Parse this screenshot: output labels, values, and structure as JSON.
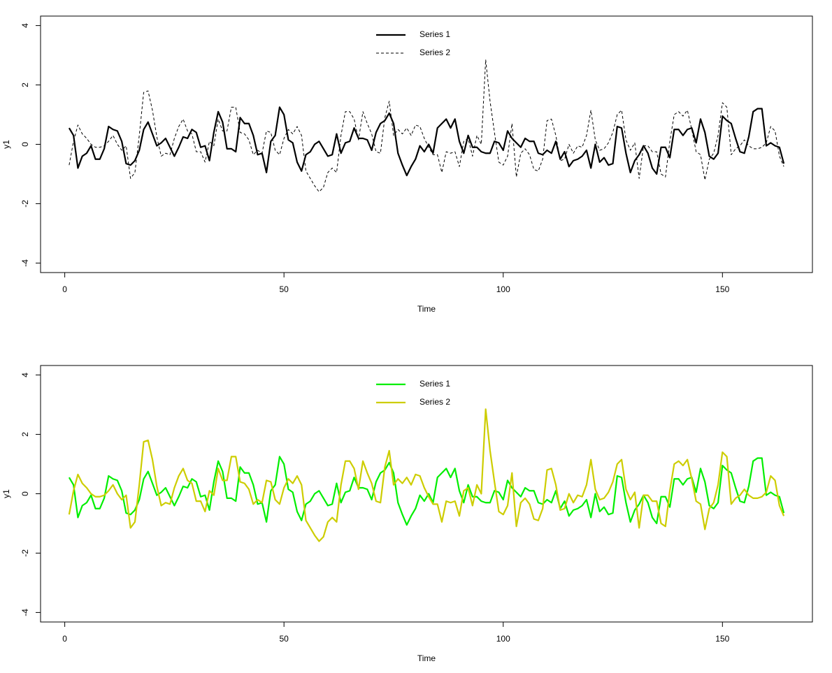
{
  "chart_data": [
    {
      "type": "line",
      "xlabel": "Time",
      "ylabel": "y1",
      "xlim": [
        -5.52,
        170.52
      ],
      "ylim": [
        -4.32,
        4.32
      ],
      "xticks": [
        0,
        50,
        100,
        150
      ],
      "yticks": [
        -4,
        -2,
        0,
        2,
        4
      ],
      "legend": "top",
      "x": [
        1,
        2,
        3,
        4,
        5,
        6,
        7,
        8,
        9,
        10,
        11,
        12,
        13,
        14,
        15,
        16,
        17,
        18,
        19,
        20,
        21,
        22,
        23,
        24,
        25,
        26,
        27,
        28,
        29,
        30,
        31,
        32,
        33,
        34,
        35,
        36,
        37,
        38,
        39,
        40,
        41,
        42,
        43,
        44,
        45,
        46,
        47,
        48,
        49,
        50,
        51,
        52,
        53,
        54,
        55,
        56,
        57,
        58,
        59,
        60,
        61,
        62,
        63,
        64,
        65,
        66,
        67,
        68,
        69,
        70,
        71,
        72,
        73,
        74,
        75,
        76,
        77,
        78,
        79,
        80,
        81,
        82,
        83,
        84,
        85,
        86,
        87,
        88,
        89,
        90,
        91,
        92,
        93,
        94,
        95,
        96,
        97,
        98,
        99,
        100,
        101,
        102,
        103,
        104,
        105,
        106,
        107,
        108,
        109,
        110,
        111,
        112,
        113,
        114,
        115,
        116,
        117,
        118,
        119,
        120,
        121,
        122,
        123,
        124,
        125,
        126,
        127,
        128,
        129,
        130,
        131,
        132,
        133,
        134,
        135,
        136,
        137,
        138,
        139,
        140,
        141,
        142,
        143,
        144,
        145,
        146,
        147,
        148,
        149,
        150,
        151,
        152,
        153,
        154,
        155,
        156,
        157,
        158,
        159,
        160,
        161,
        162,
        163,
        164
      ],
      "series": [
        {
          "name": "Series 1",
          "color": "#000000",
          "linestyle": "solid",
          "values": [
            0.55,
            0.3,
            -0.8,
            -0.4,
            -0.3,
            -0.05,
            -0.5,
            -0.5,
            -0.15,
            0.6,
            0.5,
            0.45,
            0.1,
            -0.65,
            -0.7,
            -0.55,
            -0.2,
            0.5,
            0.75,
            0.35,
            -0.05,
            0.05,
            0.2,
            -0.1,
            -0.4,
            -0.1,
            0.25,
            0.2,
            0.5,
            0.4,
            -0.1,
            -0.05,
            -0.55,
            0.4,
            1.1,
            0.75,
            -0.15,
            -0.15,
            -0.25,
            0.9,
            0.7,
            0.7,
            0.3,
            -0.35,
            -0.3,
            -0.95,
            0.1,
            0.3,
            1.25,
            1.0,
            0.15,
            0.05,
            -0.6,
            -0.9,
            -0.35,
            -0.25,
            0.0,
            0.1,
            -0.15,
            -0.4,
            -0.35,
            0.35,
            -0.3,
            0.05,
            0.1,
            0.55,
            0.2,
            0.2,
            0.15,
            -0.2,
            0.4,
            0.7,
            0.8,
            1.05,
            0.7,
            -0.3,
            -0.7,
            -1.05,
            -0.75,
            -0.5,
            -0.05,
            -0.25,
            0.0,
            -0.3,
            0.55,
            0.7,
            0.85,
            0.55,
            0.85,
            0.1,
            -0.3,
            0.3,
            -0.1,
            -0.1,
            -0.25,
            -0.3,
            -0.3,
            0.1,
            0.05,
            -0.2,
            0.45,
            0.2,
            0.05,
            -0.1,
            0.2,
            0.1,
            0.1,
            -0.3,
            -0.35,
            -0.2,
            -0.3,
            0.1,
            -0.5,
            -0.25,
            -0.75,
            -0.55,
            -0.5,
            -0.4,
            -0.2,
            -0.8,
            0.0,
            -0.6,
            -0.45,
            -0.7,
            -0.65,
            0.6,
            0.55,
            -0.3,
            -0.95,
            -0.55,
            -0.35,
            -0.05,
            -0.3,
            -0.8,
            -1.0,
            -0.1,
            -0.1,
            -0.45,
            0.5,
            0.5,
            0.3,
            0.5,
            0.55,
            0.05,
            0.85,
            0.4,
            -0.4,
            -0.5,
            -0.3,
            0.95,
            0.8,
            0.7,
            0.2,
            -0.25,
            -0.3,
            0.25,
            1.1,
            1.2,
            1.2,
            -0.05,
            0.05,
            -0.05,
            -0.1,
            -0.65
          ]
        },
        {
          "name": "Series 2",
          "color": "#000000",
          "linestyle": "dashed",
          "values": [
            -0.7,
            0.1,
            0.65,
            0.35,
            0.2,
            0.0,
            -0.1,
            -0.1,
            -0.05,
            0.1,
            0.3,
            0.0,
            -0.2,
            -0.05,
            -1.15,
            -0.95,
            0.3,
            1.75,
            1.8,
            1.15,
            0.25,
            -0.4,
            -0.3,
            -0.35,
            0.2,
            0.6,
            0.85,
            0.45,
            0.35,
            -0.25,
            -0.25,
            -0.6,
            0.1,
            -0.05,
            0.85,
            0.45,
            0.45,
            1.25,
            1.25,
            0.4,
            0.35,
            0.15,
            -0.35,
            -0.2,
            -0.3,
            0.45,
            0.4,
            -0.2,
            -0.35,
            0.2,
            0.5,
            0.35,
            0.6,
            0.3,
            -0.9,
            -1.15,
            -1.4,
            -1.6,
            -1.45,
            -0.95,
            -0.8,
            -0.95,
            0.3,
            1.1,
            1.1,
            0.85,
            0.15,
            1.1,
            0.7,
            0.35,
            -0.25,
            -0.3,
            0.9,
            1.45,
            0.3,
            0.5,
            0.35,
            0.55,
            0.3,
            0.65,
            0.6,
            0.2,
            -0.1,
            -0.35,
            -0.35,
            -0.95,
            -0.25,
            -0.3,
            -0.25,
            -0.75,
            0.1,
            0.2,
            -0.4,
            0.3,
            0.0,
            2.85,
            1.45,
            0.4,
            -0.6,
            -0.7,
            -0.4,
            0.7,
            -1.1,
            -0.3,
            -0.15,
            -0.35,
            -0.85,
            -0.9,
            -0.5,
            0.8,
            0.85,
            0.3,
            -0.55,
            -0.5,
            0.0,
            -0.3,
            -0.05,
            -0.1,
            0.3,
            1.15,
            0.15,
            -0.2,
            -0.15,
            0.05,
            0.4,
            1.0,
            1.15,
            0.15,
            -0.2,
            0.05,
            -1.15,
            -0.05,
            -0.05,
            -0.25,
            -0.25,
            -1.0,
            -1.1,
            0.1,
            1.0,
            1.1,
            0.95,
            1.15,
            0.5,
            -0.25,
            -0.35,
            -1.2,
            -0.5,
            -0.3,
            0.3,
            1.4,
            1.25,
            -0.35,
            -0.15,
            -0.05,
            0.15,
            -0.05,
            -0.15,
            -0.15,
            -0.1,
            0.05,
            0.6,
            0.45,
            -0.4,
            -0.75
          ]
        }
      ]
    },
    {
      "type": "line",
      "xlabel": "Time",
      "ylabel": "y1",
      "xlim": [
        -5.52,
        170.52
      ],
      "ylim": [
        -4.32,
        4.32
      ],
      "xticks": [
        0,
        50,
        100,
        150
      ],
      "yticks": [
        -4,
        -2,
        0,
        2,
        4
      ],
      "legend": "top",
      "x": [
        1,
        2,
        3,
        4,
        5,
        6,
        7,
        8,
        9,
        10,
        11,
        12,
        13,
        14,
        15,
        16,
        17,
        18,
        19,
        20,
        21,
        22,
        23,
        24,
        25,
        26,
        27,
        28,
        29,
        30,
        31,
        32,
        33,
        34,
        35,
        36,
        37,
        38,
        39,
        40,
        41,
        42,
        43,
        44,
        45,
        46,
        47,
        48,
        49,
        50,
        51,
        52,
        53,
        54,
        55,
        56,
        57,
        58,
        59,
        60,
        61,
        62,
        63,
        64,
        65,
        66,
        67,
        68,
        69,
        70,
        71,
        72,
        73,
        74,
        75,
        76,
        77,
        78,
        79,
        80,
        81,
        82,
        83,
        84,
        85,
        86,
        87,
        88,
        89,
        90,
        91,
        92,
        93,
        94,
        95,
        96,
        97,
        98,
        99,
        100,
        101,
        102,
        103,
        104,
        105,
        106,
        107,
        108,
        109,
        110,
        111,
        112,
        113,
        114,
        115,
        116,
        117,
        118,
        119,
        120,
        121,
        122,
        123,
        124,
        125,
        126,
        127,
        128,
        129,
        130,
        131,
        132,
        133,
        134,
        135,
        136,
        137,
        138,
        139,
        140,
        141,
        142,
        143,
        144,
        145,
        146,
        147,
        148,
        149,
        150,
        151,
        152,
        153,
        154,
        155,
        156,
        157,
        158,
        159,
        160,
        161,
        162,
        163,
        164
      ],
      "series": [
        {
          "name": "Series 1",
          "color": "#00ee00",
          "linestyle": "solid",
          "values": [
            0.55,
            0.3,
            -0.8,
            -0.4,
            -0.3,
            -0.05,
            -0.5,
            -0.5,
            -0.15,
            0.6,
            0.5,
            0.45,
            0.1,
            -0.65,
            -0.7,
            -0.55,
            -0.2,
            0.5,
            0.75,
            0.35,
            -0.05,
            0.05,
            0.2,
            -0.1,
            -0.4,
            -0.1,
            0.25,
            0.2,
            0.5,
            0.4,
            -0.1,
            -0.05,
            -0.55,
            0.4,
            1.1,
            0.75,
            -0.15,
            -0.15,
            -0.25,
            0.9,
            0.7,
            0.7,
            0.3,
            -0.35,
            -0.3,
            -0.95,
            0.1,
            0.3,
            1.25,
            1.0,
            0.15,
            0.05,
            -0.6,
            -0.9,
            -0.35,
            -0.25,
            0.0,
            0.1,
            -0.15,
            -0.4,
            -0.35,
            0.35,
            -0.3,
            0.05,
            0.1,
            0.55,
            0.2,
            0.2,
            0.15,
            -0.2,
            0.4,
            0.7,
            0.8,
            1.05,
            0.7,
            -0.3,
            -0.7,
            -1.05,
            -0.75,
            -0.5,
            -0.05,
            -0.25,
            0.0,
            -0.3,
            0.55,
            0.7,
            0.85,
            0.55,
            0.85,
            0.1,
            -0.3,
            0.3,
            -0.1,
            -0.1,
            -0.25,
            -0.3,
            -0.3,
            0.1,
            0.05,
            -0.2,
            0.45,
            0.2,
            0.05,
            -0.1,
            0.2,
            0.1,
            0.1,
            -0.3,
            -0.35,
            -0.2,
            -0.3,
            0.1,
            -0.5,
            -0.25,
            -0.75,
            -0.55,
            -0.5,
            -0.4,
            -0.2,
            -0.8,
            0.0,
            -0.6,
            -0.45,
            -0.7,
            -0.65,
            0.6,
            0.55,
            -0.3,
            -0.95,
            -0.55,
            -0.35,
            -0.05,
            -0.3,
            -0.8,
            -1.0,
            -0.1,
            -0.1,
            -0.45,
            0.5,
            0.5,
            0.3,
            0.5,
            0.55,
            0.05,
            0.85,
            0.4,
            -0.4,
            -0.5,
            -0.3,
            0.95,
            0.8,
            0.7,
            0.2,
            -0.25,
            -0.3,
            0.25,
            1.1,
            1.2,
            1.2,
            -0.05,
            0.05,
            -0.05,
            -0.1,
            -0.65
          ]
        },
        {
          "name": "Series 2",
          "color": "#cdcd00",
          "linestyle": "solid",
          "values": [
            -0.7,
            0.1,
            0.65,
            0.35,
            0.2,
            0.0,
            -0.1,
            -0.1,
            -0.05,
            0.1,
            0.3,
            0.0,
            -0.2,
            -0.05,
            -1.15,
            -0.95,
            0.3,
            1.75,
            1.8,
            1.15,
            0.25,
            -0.4,
            -0.3,
            -0.35,
            0.2,
            0.6,
            0.85,
            0.45,
            0.35,
            -0.25,
            -0.25,
            -0.6,
            0.1,
            -0.05,
            0.85,
            0.45,
            0.45,
            1.25,
            1.25,
            0.4,
            0.35,
            0.15,
            -0.35,
            -0.2,
            -0.3,
            0.45,
            0.4,
            -0.2,
            -0.35,
            0.2,
            0.5,
            0.35,
            0.6,
            0.3,
            -0.9,
            -1.15,
            -1.4,
            -1.6,
            -1.45,
            -0.95,
            -0.8,
            -0.95,
            0.3,
            1.1,
            1.1,
            0.85,
            0.15,
            1.1,
            0.7,
            0.35,
            -0.25,
            -0.3,
            0.9,
            1.45,
            0.3,
            0.5,
            0.35,
            0.55,
            0.3,
            0.65,
            0.6,
            0.2,
            -0.1,
            -0.35,
            -0.35,
            -0.95,
            -0.25,
            -0.3,
            -0.25,
            -0.75,
            0.1,
            0.2,
            -0.4,
            0.3,
            0.0,
            2.85,
            1.45,
            0.4,
            -0.6,
            -0.7,
            -0.4,
            0.7,
            -1.1,
            -0.3,
            -0.15,
            -0.35,
            -0.85,
            -0.9,
            -0.5,
            0.8,
            0.85,
            0.3,
            -0.55,
            -0.5,
            0.0,
            -0.3,
            -0.05,
            -0.1,
            0.3,
            1.15,
            0.15,
            -0.2,
            -0.15,
            0.05,
            0.4,
            1.0,
            1.15,
            0.15,
            -0.2,
            0.05,
            -1.15,
            -0.05,
            -0.05,
            -0.25,
            -0.25,
            -1.0,
            -1.1,
            0.1,
            1.0,
            1.1,
            0.95,
            1.15,
            0.5,
            -0.25,
            -0.35,
            -1.2,
            -0.5,
            -0.3,
            0.3,
            1.4,
            1.25,
            -0.35,
            -0.15,
            -0.05,
            0.15,
            -0.05,
            -0.15,
            -0.15,
            -0.1,
            0.05,
            0.6,
            0.45,
            -0.4,
            -0.75
          ]
        }
      ]
    }
  ]
}
